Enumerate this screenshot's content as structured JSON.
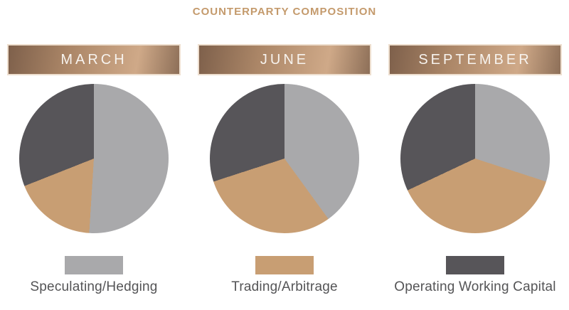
{
  "page_title": "COUNTERPARTY COMPOSITION",
  "colors": {
    "accent": "#c49a6c",
    "background": "#ffffff",
    "header_gradient": [
      "#7e604b",
      "#ab8667",
      "#cfa988",
      "#8d6f58"
    ],
    "header_border": "#eedfcf",
    "header_text": "#f7f3ee",
    "legend_text": "#545456",
    "series": [
      "#a9a9ab",
      "#c89e73",
      "#575559"
    ]
  },
  "chart_data": [
    {
      "type": "pie",
      "title": "MARCH",
      "labels": [
        "Speculating/Hedging",
        "Trading/Arbitrage",
        "Operating Working Capital"
      ],
      "values": [
        51,
        18,
        31
      ],
      "colors": [
        "#a9a9ab",
        "#c89e73",
        "#575559"
      ],
      "start_angle_deg": 0,
      "direction": "clockwise",
      "units": "percent"
    },
    {
      "type": "pie",
      "title": "JUNE",
      "labels": [
        "Speculating/Hedging",
        "Trading/Arbitrage",
        "Operating Working Capital"
      ],
      "values": [
        40,
        30,
        30
      ],
      "colors": [
        "#a9a9ab",
        "#c89e73",
        "#575559"
      ],
      "start_angle_deg": 0,
      "direction": "clockwise",
      "units": "percent"
    },
    {
      "type": "pie",
      "title": "SEPTEMBER",
      "labels": [
        "Speculating/Hedging",
        "Trading/Arbitrage",
        "Operating Working Capital"
      ],
      "values": [
        30,
        38,
        32
      ],
      "colors": [
        "#a9a9ab",
        "#c89e73",
        "#575559"
      ],
      "start_angle_deg": 0,
      "direction": "clockwise",
      "units": "percent"
    }
  ],
  "legend": {
    "position": "bottom",
    "items": [
      {
        "label": "Speculating/Hedging",
        "color": "#a9a9ab"
      },
      {
        "label": "Trading/Arbitrage",
        "color": "#c89e73"
      },
      {
        "label": "Operating Working Capital",
        "color": "#575559"
      }
    ]
  }
}
